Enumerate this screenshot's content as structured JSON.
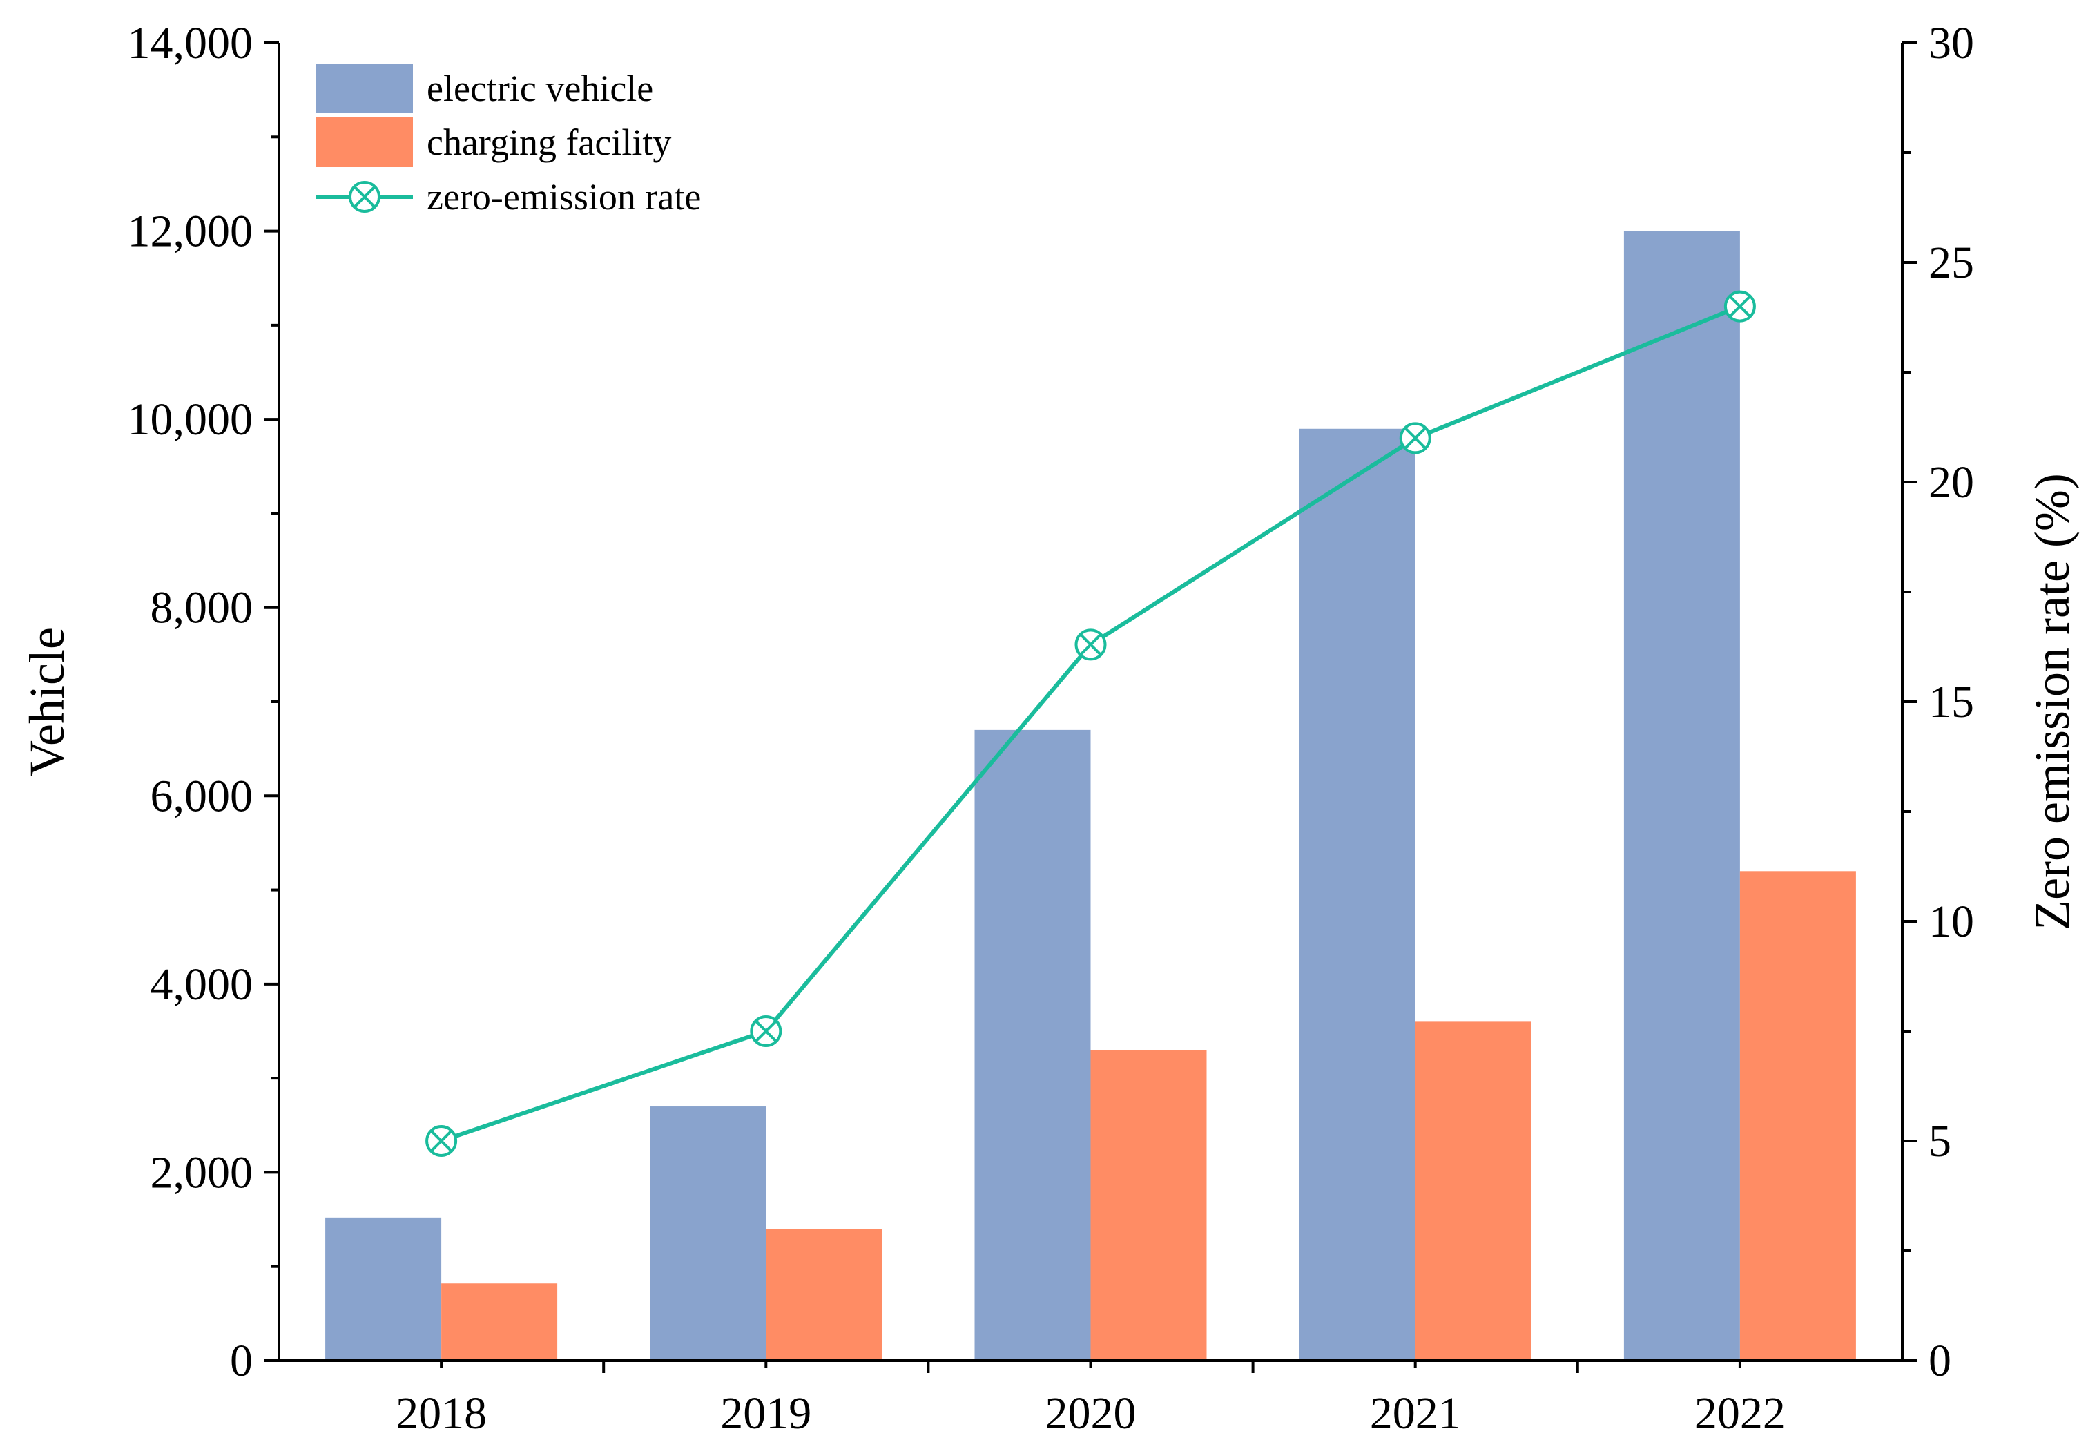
{
  "chart_data": {
    "type": "bar",
    "categories": [
      "2018",
      "2019",
      "2020",
      "2021",
      "2022"
    ],
    "series": [
      {
        "name": "electric vehicle",
        "axis": "left",
        "type": "bar",
        "color": "#89a3cd",
        "values": [
          1520,
          2700,
          6700,
          9900,
          12000
        ]
      },
      {
        "name": "charging facility",
        "axis": "left",
        "type": "bar",
        "color": "#ff8c64",
        "values": [
          820,
          1400,
          3300,
          3600,
          5200
        ]
      },
      {
        "name": "zero-emission rate",
        "axis": "right",
        "type": "line",
        "color": "#1abc9c",
        "marker": "circle-x",
        "values": [
          5,
          7.5,
          16.3,
          21,
          24
        ]
      }
    ],
    "ylabel": "Vehicle",
    "ylabel_right": "Zero emission rate (%)",
    "ylim": [
      0,
      14000
    ],
    "ylim_right": [
      0,
      30
    ],
    "yticks": [
      0,
      2000,
      4000,
      6000,
      8000,
      10000,
      12000,
      14000
    ],
    "yticks_right": [
      0,
      5,
      10,
      15,
      20,
      25,
      30
    ],
    "ytick_labels": [
      "0",
      "2,000",
      "4,000",
      "6,000",
      "8,000",
      "10,000",
      "12,000",
      "14,000"
    ],
    "ytick_labels_right": [
      "0",
      "5",
      "10",
      "15",
      "20",
      "25",
      "30"
    ],
    "legend": [
      "electric vehicle",
      "charging facility",
      "zero-emission rate"
    ],
    "legend_position": "top-left",
    "grid": false
  }
}
